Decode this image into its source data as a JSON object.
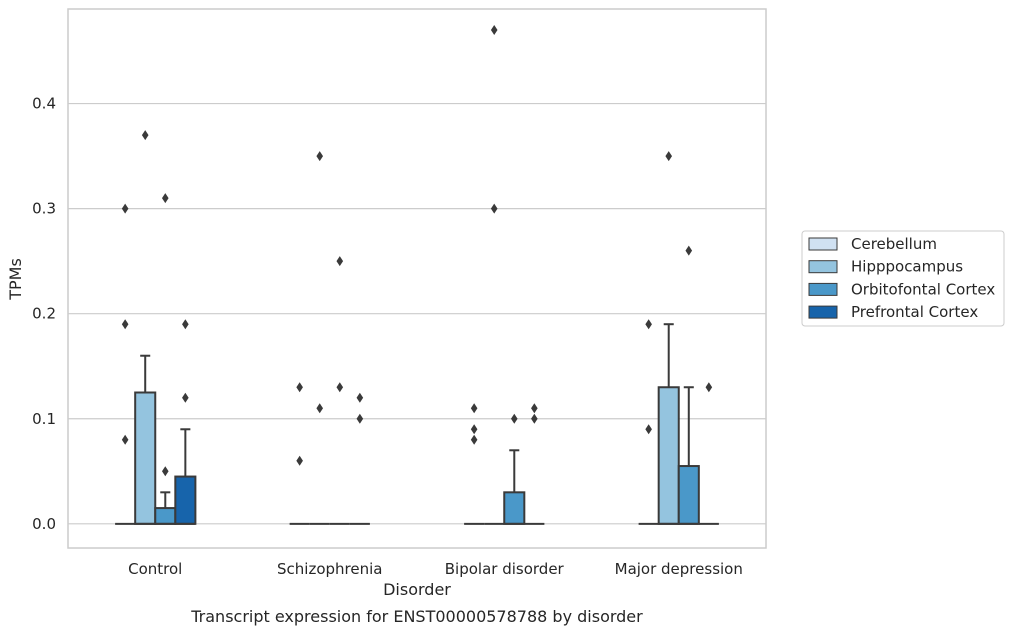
{
  "chart_data": {
    "type": "box",
    "caption": "Transcript expression for ENST00000578788 by disorder",
    "xlabel": "Disorder",
    "ylabel": "TPMs",
    "ylim": [
      -0.023,
      0.49
    ],
    "yticks": [
      0.0,
      0.1,
      0.2,
      0.3,
      0.4
    ],
    "ytick_labels": [
      "0.0",
      "0.1",
      "0.2",
      "0.3",
      "0.4"
    ],
    "grid": "horizontal",
    "legend_position": "right",
    "categories": [
      "Control",
      "Schizophrenia",
      "Bipolar disorder",
      "Major depression"
    ],
    "series": [
      {
        "name": "Cerebellum",
        "color": "#d0e1f2",
        "boxes": [
          {
            "q1": 0,
            "median": 0,
            "q3": 0,
            "whisker_low": 0,
            "whisker_high": 0,
            "outliers": [
              0.08,
              0.19,
              0.3
            ]
          },
          {
            "q1": 0,
            "median": 0,
            "q3": 0,
            "whisker_low": 0,
            "whisker_high": 0,
            "outliers": [
              0.06,
              0.13
            ]
          },
          {
            "q1": 0,
            "median": 0,
            "q3": 0,
            "whisker_low": 0,
            "whisker_high": 0,
            "outliers": [
              0.08,
              0.09,
              0.11
            ]
          },
          {
            "q1": 0,
            "median": 0,
            "q3": 0,
            "whisker_low": 0,
            "whisker_high": 0,
            "outliers": [
              0.09,
              0.19
            ]
          }
        ]
      },
      {
        "name": "Hipppocampus",
        "color": "#94c4df",
        "boxes": [
          {
            "q1": 0,
            "median": 0,
            "q3": 0.125,
            "whisker_low": 0,
            "whisker_high": 0.16,
            "outliers": [
              0.37
            ]
          },
          {
            "q1": 0,
            "median": 0,
            "q3": 0,
            "whisker_low": 0,
            "whisker_high": 0,
            "outliers": [
              0.11,
              0.35
            ]
          },
          {
            "q1": 0,
            "median": 0,
            "q3": 0,
            "whisker_low": 0,
            "whisker_high": 0,
            "outliers": [
              0.3,
              0.47
            ]
          },
          {
            "q1": 0,
            "median": 0,
            "q3": 0.13,
            "whisker_low": 0,
            "whisker_high": 0.19,
            "outliers": [
              0.35
            ]
          }
        ]
      },
      {
        "name": "Orbitofontal Cortex",
        "color": "#4a98c9",
        "boxes": [
          {
            "q1": 0,
            "median": 0,
            "q3": 0.015,
            "whisker_low": 0,
            "whisker_high": 0.03,
            "outliers": [
              0.05,
              0.31
            ]
          },
          {
            "q1": 0,
            "median": 0,
            "q3": 0,
            "whisker_low": 0,
            "whisker_high": 0,
            "outliers": [
              0.13,
              0.25
            ]
          },
          {
            "q1": 0,
            "median": 0,
            "q3": 0.03,
            "whisker_low": 0,
            "whisker_high": 0.07,
            "outliers": [
              0.1
            ]
          },
          {
            "q1": 0,
            "median": 0,
            "q3": 0.055,
            "whisker_low": 0,
            "whisker_high": 0.13,
            "outliers": [
              0.26
            ]
          }
        ]
      },
      {
        "name": "Prefrontal Cortex",
        "color": "#1764ab",
        "boxes": [
          {
            "q1": 0,
            "median": 0,
            "q3": 0.045,
            "whisker_low": 0,
            "whisker_high": 0.09,
            "outliers": [
              0.12,
              0.19
            ]
          },
          {
            "q1": 0,
            "median": 0,
            "q3": 0,
            "whisker_low": 0,
            "whisker_high": 0,
            "outliers": [
              0.1,
              0.12
            ]
          },
          {
            "q1": 0,
            "median": 0,
            "q3": 0,
            "whisker_low": 0,
            "whisker_high": 0,
            "outliers": [
              0.1,
              0.11
            ]
          },
          {
            "q1": 0,
            "median": 0,
            "q3": 0,
            "whisker_low": 0,
            "whisker_high": 0,
            "outliers": [
              0.13
            ]
          }
        ]
      }
    ]
  }
}
